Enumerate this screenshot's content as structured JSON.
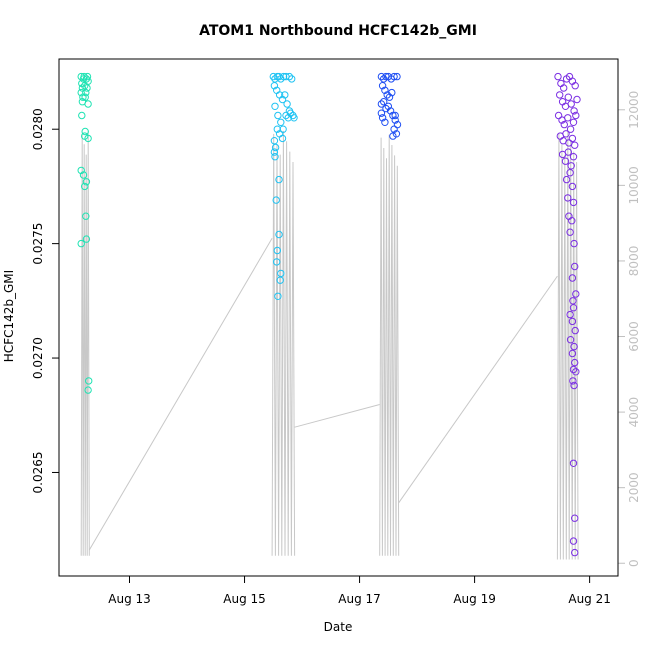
{
  "chart_data": {
    "type": "scatter",
    "title": "ATOM1 Northbound HCFC142b_GMI",
    "xlabel": "Date",
    "ylabel": "HCFC142b_GMI",
    "x_ticks": [
      {
        "label": "Aug 13",
        "day": 13
      },
      {
        "label": "Aug 15",
        "day": 15
      },
      {
        "label": "Aug 17",
        "day": 17
      },
      {
        "label": "Aug 19",
        "day": 19
      },
      {
        "label": "Aug 21",
        "day": 21
      }
    ],
    "xlim_days": [
      12.0,
      21.25
    ],
    "ylim": [
      0.0261,
      0.02825
    ],
    "y_ticks": [
      "0.0265",
      "0.0270",
      "0.0275",
      "0.0280"
    ],
    "y2lim": [
      -20,
      13000
    ],
    "y2_ticks": [
      "0",
      "2000",
      "4000",
      "6000",
      "8000",
      "10000",
      "12000"
    ],
    "grid": false,
    "colors": {
      "flight1": "#1FE3B3",
      "flight2": "#1FC3F3",
      "flight3": "#1F4FF3",
      "flight4": "#7B2FE3",
      "altitude": "#c8c8c8"
    },
    "series": [
      {
        "color": "#1FE3B3",
        "points": [
          [
            12.16,
            0.02823
          ],
          [
            12.17,
            0.0282
          ],
          [
            12.18,
            0.02818
          ],
          [
            12.16,
            0.02816
          ],
          [
            12.19,
            0.02814
          ],
          [
            12.2,
            0.02822
          ],
          [
            12.18,
            0.02812
          ],
          [
            12.21,
            0.02823
          ],
          [
            12.22,
            0.02819
          ],
          [
            12.25,
            0.02822
          ],
          [
            12.27,
            0.02823
          ],
          [
            12.28,
            0.02821
          ],
          [
            12.26,
            0.02818
          ],
          [
            12.24,
            0.02816
          ],
          [
            12.23,
            0.02814
          ],
          [
            12.28,
            0.02811
          ],
          [
            12.17,
            0.02806
          ],
          [
            12.23,
            0.02799
          ],
          [
            12.22,
            0.02797
          ],
          [
            12.28,
            0.02796
          ],
          [
            12.16,
            0.02782
          ],
          [
            12.2,
            0.0278
          ],
          [
            12.25,
            0.02777
          ],
          [
            12.22,
            0.02775
          ],
          [
            12.24,
            0.02762
          ],
          [
            12.25,
            0.02752
          ],
          [
            12.16,
            0.0275
          ],
          [
            12.29,
            0.0269
          ],
          [
            12.28,
            0.02686
          ]
        ]
      },
      {
        "color": "#1FC3F3",
        "points": [
          [
            15.5,
            0.02823
          ],
          [
            15.53,
            0.02822
          ],
          [
            15.57,
            0.02823
          ],
          [
            15.6,
            0.02823
          ],
          [
            15.63,
            0.02822
          ],
          [
            15.68,
            0.02823
          ],
          [
            15.72,
            0.02823
          ],
          [
            15.78,
            0.02823
          ],
          [
            15.82,
            0.02822
          ],
          [
            15.52,
            0.02819
          ],
          [
            15.56,
            0.02817
          ],
          [
            15.61,
            0.02815
          ],
          [
            15.66,
            0.02813
          ],
          [
            15.7,
            0.02815
          ],
          [
            15.74,
            0.02811
          ],
          [
            15.78,
            0.02808
          ],
          [
            15.53,
            0.0281
          ],
          [
            15.58,
            0.02806
          ],
          [
            15.63,
            0.02803
          ],
          [
            15.67,
            0.028
          ],
          [
            15.72,
            0.02806
          ],
          [
            15.76,
            0.02805
          ],
          [
            15.8,
            0.02807
          ],
          [
            15.84,
            0.02806
          ],
          [
            15.86,
            0.02805
          ],
          [
            15.57,
            0.028
          ],
          [
            15.61,
            0.02798
          ],
          [
            15.66,
            0.02796
          ],
          [
            15.52,
            0.02795
          ],
          [
            15.54,
            0.02792
          ],
          [
            15.52,
            0.0279
          ],
          [
            15.53,
            0.02788
          ],
          [
            15.6,
            0.02778
          ],
          [
            15.55,
            0.02769
          ],
          [
            15.6,
            0.02754
          ],
          [
            15.57,
            0.02747
          ],
          [
            15.56,
            0.02742
          ],
          [
            15.63,
            0.02737
          ],
          [
            15.58,
            0.02727
          ],
          [
            15.62,
            0.02734
          ]
        ]
      },
      {
        "color": "#1F4FF3",
        "points": [
          [
            17.38,
            0.02823
          ],
          [
            17.42,
            0.02822
          ],
          [
            17.46,
            0.02823
          ],
          [
            17.5,
            0.02823
          ],
          [
            17.55,
            0.02822
          ],
          [
            17.6,
            0.02823
          ],
          [
            17.65,
            0.02823
          ],
          [
            17.4,
            0.02819
          ],
          [
            17.44,
            0.02817
          ],
          [
            17.48,
            0.02815
          ],
          [
            17.52,
            0.02814
          ],
          [
            17.56,
            0.02816
          ],
          [
            17.38,
            0.02811
          ],
          [
            17.42,
            0.02812
          ],
          [
            17.46,
            0.02809
          ],
          [
            17.5,
            0.0281
          ],
          [
            17.54,
            0.02808
          ],
          [
            17.58,
            0.02806
          ],
          [
            17.62,
            0.02804
          ],
          [
            17.66,
            0.02802
          ],
          [
            17.4,
            0.02805
          ],
          [
            17.44,
            0.02803
          ],
          [
            17.6,
            0.028
          ],
          [
            17.64,
            0.02798
          ],
          [
            17.58,
            0.02797
          ],
          [
            17.38,
            0.02807
          ],
          [
            17.62,
            0.02806
          ]
        ]
      },
      {
        "color": "#7B2FE3",
        "points": [
          [
            20.45,
            0.02823
          ],
          [
            20.5,
            0.0282
          ],
          [
            20.55,
            0.02818
          ],
          [
            20.6,
            0.02822
          ],
          [
            20.65,
            0.02823
          ],
          [
            20.7,
            0.02821
          ],
          [
            20.75,
            0.02819
          ],
          [
            20.48,
            0.02815
          ],
          [
            20.53,
            0.02812
          ],
          [
            20.58,
            0.0281
          ],
          [
            20.63,
            0.02814
          ],
          [
            20.68,
            0.02811
          ],
          [
            20.73,
            0.02808
          ],
          [
            20.78,
            0.02813
          ],
          [
            20.46,
            0.02806
          ],
          [
            20.52,
            0.02804
          ],
          [
            20.56,
            0.02802
          ],
          [
            20.62,
            0.02805
          ],
          [
            20.67,
            0.028
          ],
          [
            20.72,
            0.02803
          ],
          [
            20.76,
            0.02806
          ],
          [
            20.49,
            0.02797
          ],
          [
            20.54,
            0.02795
          ],
          [
            20.59,
            0.02798
          ],
          [
            20.64,
            0.02794
          ],
          [
            20.7,
            0.02796
          ],
          [
            20.74,
            0.02793
          ],
          [
            20.53,
            0.02789
          ],
          [
            20.58,
            0.02786
          ],
          [
            20.63,
            0.0279
          ],
          [
            20.68,
            0.02784
          ],
          [
            20.72,
            0.02788
          ],
          [
            20.66,
            0.02781
          ],
          [
            20.6,
            0.02778
          ],
          [
            20.7,
            0.02775
          ],
          [
            20.62,
            0.0277
          ],
          [
            20.72,
            0.02768
          ],
          [
            20.64,
            0.02762
          ],
          [
            20.69,
            0.0276
          ],
          [
            20.66,
            0.02755
          ],
          [
            20.73,
            0.0275
          ],
          [
            20.74,
            0.0274
          ],
          [
            20.7,
            0.02735
          ],
          [
            20.76,
            0.02728
          ],
          [
            20.71,
            0.02725
          ],
          [
            20.72,
            0.02722
          ],
          [
            20.66,
            0.02719
          ],
          [
            20.7,
            0.02716
          ],
          [
            20.75,
            0.02712
          ],
          [
            20.67,
            0.02708
          ],
          [
            20.73,
            0.02705
          ],
          [
            20.7,
            0.02702
          ],
          [
            20.74,
            0.02698
          ],
          [
            20.72,
            0.02695
          ],
          [
            20.76,
            0.02694
          ],
          [
            20.71,
            0.0269
          ],
          [
            20.73,
            0.02688
          ],
          [
            20.72,
            0.02654
          ],
          [
            20.74,
            0.0263
          ],
          [
            20.72,
            0.0262
          ],
          [
            20.74,
            0.02615
          ]
        ]
      }
    ],
    "altitude_series": {
      "axis": "right",
      "flights": [
        {
          "x_start": 12.16,
          "x_end": 12.3,
          "n": 8,
          "low": 200,
          "high": 11500
        },
        {
          "x_start": 15.48,
          "x_end": 15.87,
          "n": 14,
          "low": 200,
          "high": 11500
        },
        {
          "x_start": 17.35,
          "x_end": 17.68,
          "n": 14,
          "low": 200,
          "high": 11400
        },
        {
          "x_start": 20.44,
          "x_end": 20.8,
          "n": 14,
          "low": 100,
          "high": 11500
        }
      ],
      "ferry": [
        [
          12.3,
          350
        ],
        [
          15.48,
          8600
        ],
        [
          15.87,
          3600
        ],
        [
          17.35,
          4200
        ],
        [
          17.68,
          1600
        ],
        [
          20.44,
          7600
        ]
      ]
    }
  }
}
